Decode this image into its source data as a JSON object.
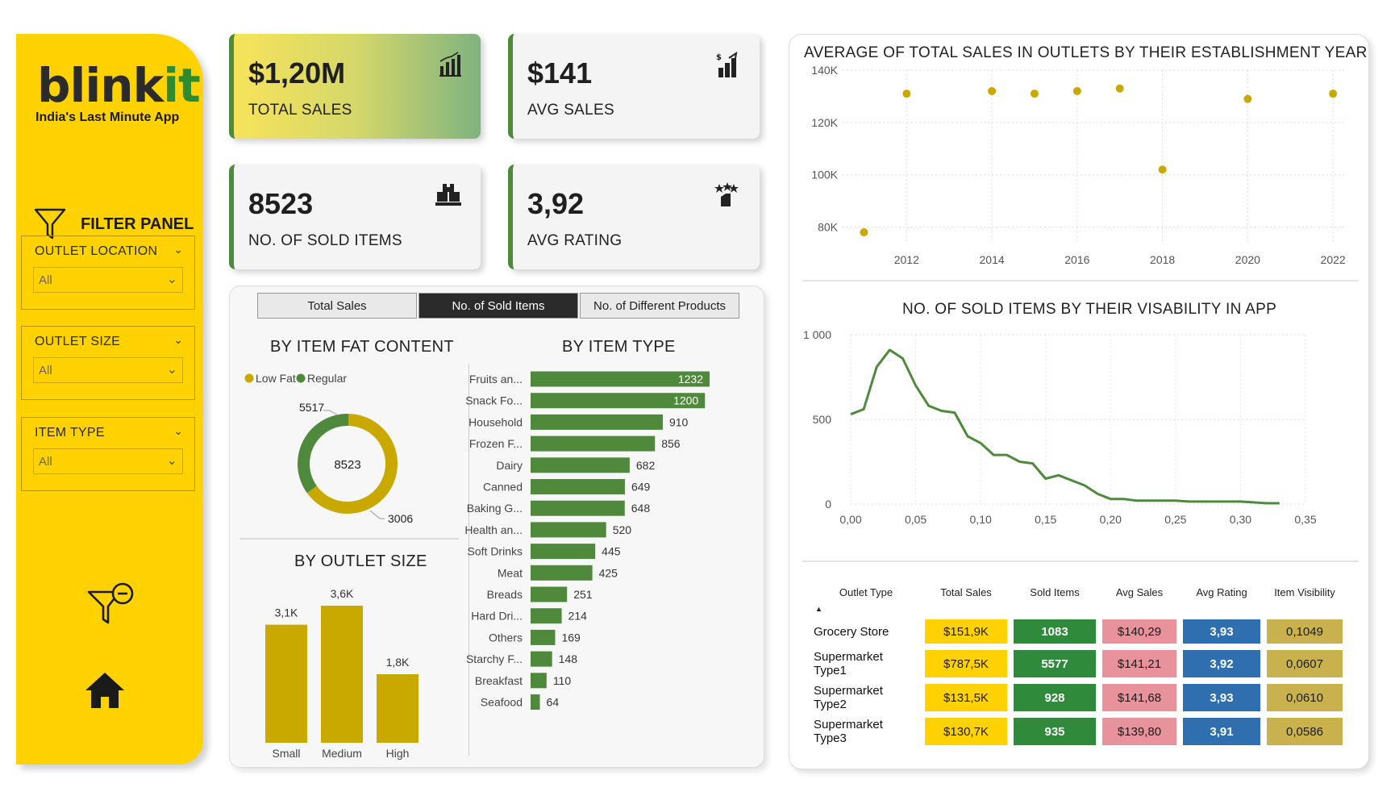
{
  "sidebar": {
    "logo_main": "blink",
    "logo_accent": "it",
    "tagline": "India's Last Minute App",
    "filter_panel_label": "FILTER PANEL",
    "slicers": [
      {
        "label": "OUTLET LOCATION",
        "value": "All"
      },
      {
        "label": "OUTLET SIZE",
        "value": "All"
      },
      {
        "label": "ITEM TYPE",
        "value": "All"
      }
    ]
  },
  "kpis": {
    "total_sales": {
      "value": "$1,20M",
      "label": "TOTAL SALES"
    },
    "avg_sales": {
      "value": "$141",
      "label": "AVG SALES"
    },
    "sold_items": {
      "value": "8523",
      "label": "NO. OF SOLD ITEMS"
    },
    "avg_rating": {
      "value": "3,92",
      "label": "AVG RATING"
    }
  },
  "tabs": [
    {
      "label": "Total Sales",
      "active": false
    },
    {
      "label": "No. of Sold Items",
      "active": true
    },
    {
      "label": "No. of Different Products",
      "active": false
    }
  ],
  "colors": {
    "gold": "#C9A800",
    "green": "#4f8a3c",
    "yellow": "#FFD200"
  },
  "chart_data": [
    {
      "type": "pie",
      "title": "BY ITEM FAT CONTENT",
      "legend": [
        "Low Fat",
        "Regular"
      ],
      "categories": [
        "Low Fat",
        "Regular"
      ],
      "values": [
        5517,
        3006
      ],
      "center_label": "8523"
    },
    {
      "type": "bar",
      "title": "BY OUTLET SIZE",
      "categories": [
        "Small",
        "Medium",
        "High"
      ],
      "values": [
        3100,
        3600,
        1800
      ],
      "data_labels": [
        "3,1K",
        "3,6K",
        "1,8K"
      ]
    },
    {
      "type": "bar",
      "orientation": "horizontal",
      "title": "BY ITEM TYPE",
      "categories": [
        "Fruits an...",
        "Snack Fo...",
        "Household",
        "Frozen F...",
        "Dairy",
        "Canned",
        "Baking G...",
        "Health an...",
        "Soft Drinks",
        "Meat",
        "Breads",
        "Hard Dri...",
        "Others",
        "Starchy F...",
        "Breakfast",
        "Seafood"
      ],
      "values": [
        1232,
        1200,
        910,
        856,
        682,
        649,
        648,
        520,
        445,
        425,
        251,
        214,
        169,
        148,
        110,
        64
      ]
    },
    {
      "type": "scatter",
      "title": "AVERAGE OF TOTAL SALES IN OUTLETS BY THEIR ESTABLISHMENT YEAR",
      "x": [
        2011,
        2012,
        2014,
        2015,
        2016,
        2017,
        2018,
        2020,
        2022
      ],
      "y": [
        78000,
        131000,
        132000,
        131000,
        132000,
        133000,
        102000,
        129000,
        131000
      ],
      "xlim": [
        2010.5,
        2022.3
      ],
      "ylim": [
        74000,
        140000
      ],
      "xticks": [
        "2012",
        "2014",
        "2016",
        "2018",
        "2020",
        "2022"
      ],
      "yticks": [
        "140K",
        "120K",
        "100K",
        "80K"
      ]
    },
    {
      "type": "line",
      "title": "NO. OF SOLD ITEMS BY THEIR VISABILITY IN APP",
      "x": [
        0.0,
        0.01,
        0.02,
        0.03,
        0.04,
        0.05,
        0.06,
        0.07,
        0.08,
        0.09,
        0.1,
        0.11,
        0.12,
        0.13,
        0.14,
        0.15,
        0.16,
        0.17,
        0.18,
        0.19,
        0.2,
        0.21,
        0.22,
        0.23,
        0.24,
        0.25,
        0.26,
        0.27,
        0.28,
        0.29,
        0.3,
        0.31,
        0.32,
        0.33
      ],
      "y": [
        530,
        560,
        810,
        910,
        860,
        700,
        580,
        550,
        540,
        400,
        360,
        290,
        290,
        250,
        240,
        150,
        170,
        140,
        110,
        60,
        30,
        30,
        20,
        20,
        20,
        20,
        15,
        15,
        15,
        15,
        15,
        10,
        5,
        5
      ],
      "xlim": [
        0,
        0.35
      ],
      "ylim": [
        0,
        1000
      ],
      "xticks": [
        "0,00",
        "0,05",
        "0,10",
        "0,15",
        "0,20",
        "0,25",
        "0,30",
        "0,35"
      ],
      "yticks": [
        "1 000",
        "500",
        "0"
      ]
    }
  ],
  "outlet_table": {
    "headers": [
      "Outlet Type",
      "Total Sales",
      "Sold Items",
      "Avg Sales",
      "Avg Rating",
      "Item Visibility"
    ],
    "sort_indicator": "▲",
    "rows": [
      {
        "type": "Grocery Store",
        "sales": "$151,9K",
        "items": "1083",
        "avg": "$140,29",
        "rating": "3,93",
        "vis": "0,1049"
      },
      {
        "type": "Supermarket Type1",
        "sales": "$787,5K",
        "items": "5577",
        "avg": "$141,21",
        "rating": "3,92",
        "vis": "0,0607"
      },
      {
        "type": "Supermarket Type2",
        "sales": "$131,5K",
        "items": "928",
        "avg": "$141,68",
        "rating": "3,93",
        "vis": "0,0610"
      },
      {
        "type": "Supermarket Type3",
        "sales": "$130,7K",
        "items": "935",
        "avg": "$139,80",
        "rating": "3,91",
        "vis": "0,0586"
      }
    ]
  }
}
